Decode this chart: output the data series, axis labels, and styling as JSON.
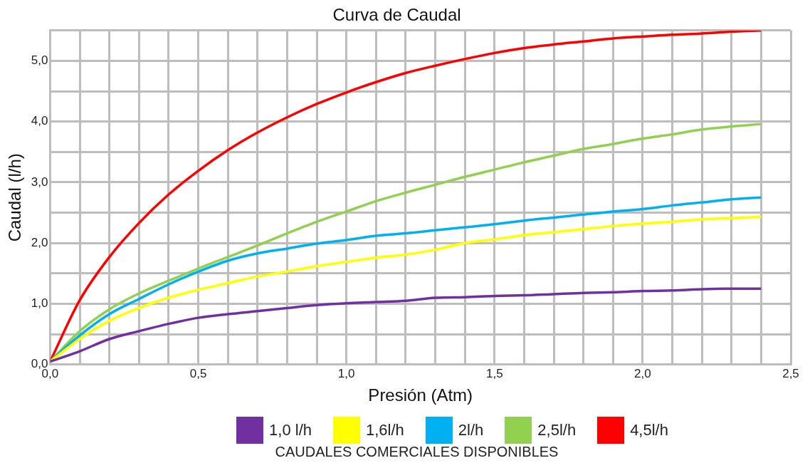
{
  "chart_data": {
    "type": "line",
    "title": "Curva de Caudal",
    "xlabel": "Presión (Atm)",
    "ylabel": "Caudal (l/h)",
    "legend_title": "CAUDALES COMERCIALES DISPONIBLES",
    "x": [
      0,
      0.1,
      0.2,
      0.3,
      0.4,
      0.5,
      0.6,
      0.7,
      0.8,
      0.9,
      1.0,
      1.1,
      1.2,
      1.3,
      1.4,
      1.5,
      1.6,
      1.7,
      1.8,
      1.9,
      2.0,
      2.1,
      2.2,
      2.3,
      2.4
    ],
    "series": [
      {
        "name": "1,0 l/h",
        "color": "#7030a0",
        "values": [
          0.05,
          0.22,
          0.42,
          0.55,
          0.67,
          0.77,
          0.83,
          0.88,
          0.93,
          0.98,
          1.01,
          1.03,
          1.05,
          1.1,
          1.11,
          1.13,
          1.14,
          1.16,
          1.18,
          1.19,
          1.21,
          1.22,
          1.24,
          1.25,
          1.25
        ]
      },
      {
        "name": "1,6l/h",
        "color": "#ffff00",
        "values": [
          0.05,
          0.42,
          0.72,
          0.93,
          1.1,
          1.23,
          1.34,
          1.45,
          1.53,
          1.62,
          1.69,
          1.76,
          1.81,
          1.89,
          2.0,
          2.06,
          2.13,
          2.18,
          2.23,
          2.28,
          2.32,
          2.35,
          2.39,
          2.41,
          2.43
        ]
      },
      {
        "name": "2l/h",
        "color": "#00b0f0",
        "values": [
          0.05,
          0.48,
          0.83,
          1.08,
          1.32,
          1.53,
          1.71,
          1.83,
          1.91,
          1.99,
          2.05,
          2.12,
          2.16,
          2.21,
          2.26,
          2.31,
          2.37,
          2.42,
          2.47,
          2.52,
          2.56,
          2.62,
          2.67,
          2.72,
          2.75
        ]
      },
      {
        "name": "2,5l/h",
        "color": "#92d050",
        "values": [
          0.05,
          0.55,
          0.91,
          1.17,
          1.38,
          1.58,
          1.77,
          1.96,
          2.16,
          2.35,
          2.52,
          2.69,
          2.83,
          2.96,
          3.09,
          3.21,
          3.33,
          3.44,
          3.55,
          3.63,
          3.72,
          3.79,
          3.87,
          3.92,
          3.96
        ]
      },
      {
        "name": "4,5l/h",
        "color": "#ff0000",
        "values": [
          0.05,
          1.06,
          1.77,
          2.33,
          2.8,
          3.19,
          3.53,
          3.82,
          4.07,
          4.29,
          4.48,
          4.65,
          4.8,
          4.92,
          5.03,
          5.13,
          5.21,
          5.27,
          5.32,
          5.37,
          5.4,
          5.43,
          5.45,
          5.48,
          5.5
        ]
      }
    ],
    "xlim": [
      0,
      2.5
    ],
    "xticks": [
      {
        "value": 0,
        "label": "0,0"
      },
      {
        "value": 0.1,
        "label": null
      },
      {
        "value": 0.2,
        "label": null
      },
      {
        "value": 0.3,
        "label": null
      },
      {
        "value": 0.4,
        "label": null
      },
      {
        "value": 0.5,
        "label": "0,5"
      },
      {
        "value": 0.6,
        "label": null
      },
      {
        "value": 0.7,
        "label": null
      },
      {
        "value": 0.8,
        "label": null
      },
      {
        "value": 0.9,
        "label": null
      },
      {
        "value": 1.0,
        "label": "1,0"
      },
      {
        "value": 1.1,
        "label": null
      },
      {
        "value": 1.2,
        "label": null
      },
      {
        "value": 1.3,
        "label": null
      },
      {
        "value": 1.4,
        "label": null
      },
      {
        "value": 1.5,
        "label": "1,5"
      },
      {
        "value": 1.6,
        "label": null
      },
      {
        "value": 1.7,
        "label": null
      },
      {
        "value": 1.8,
        "label": null
      },
      {
        "value": 1.9,
        "label": null
      },
      {
        "value": 2.0,
        "label": "2,0"
      },
      {
        "value": 2.1,
        "label": null
      },
      {
        "value": 2.2,
        "label": null
      },
      {
        "value": 2.3,
        "label": null
      },
      {
        "value": 2.4,
        "label": null
      },
      {
        "value": 2.5,
        "label": "2,5"
      }
    ],
    "ylim": [
      0,
      5.5
    ],
    "yticks": [
      {
        "value": 0,
        "label": "0,0"
      },
      {
        "value": 0.5,
        "label": null
      },
      {
        "value": 1,
        "label": "1,0"
      },
      {
        "value": 1.5,
        "label": null
      },
      {
        "value": 2,
        "label": "2,0"
      },
      {
        "value": 2.5,
        "label": null
      },
      {
        "value": 3,
        "label": "3,0"
      },
      {
        "value": 3.5,
        "label": null
      },
      {
        "value": 4,
        "label": "4,0"
      },
      {
        "value": 4.5,
        "label": null
      },
      {
        "value": 5,
        "label": "5,0"
      },
      {
        "value": 5.5,
        "label": null
      }
    ],
    "grid": true,
    "legend": "bottom",
    "marker": "none",
    "line_style": "solid"
  }
}
